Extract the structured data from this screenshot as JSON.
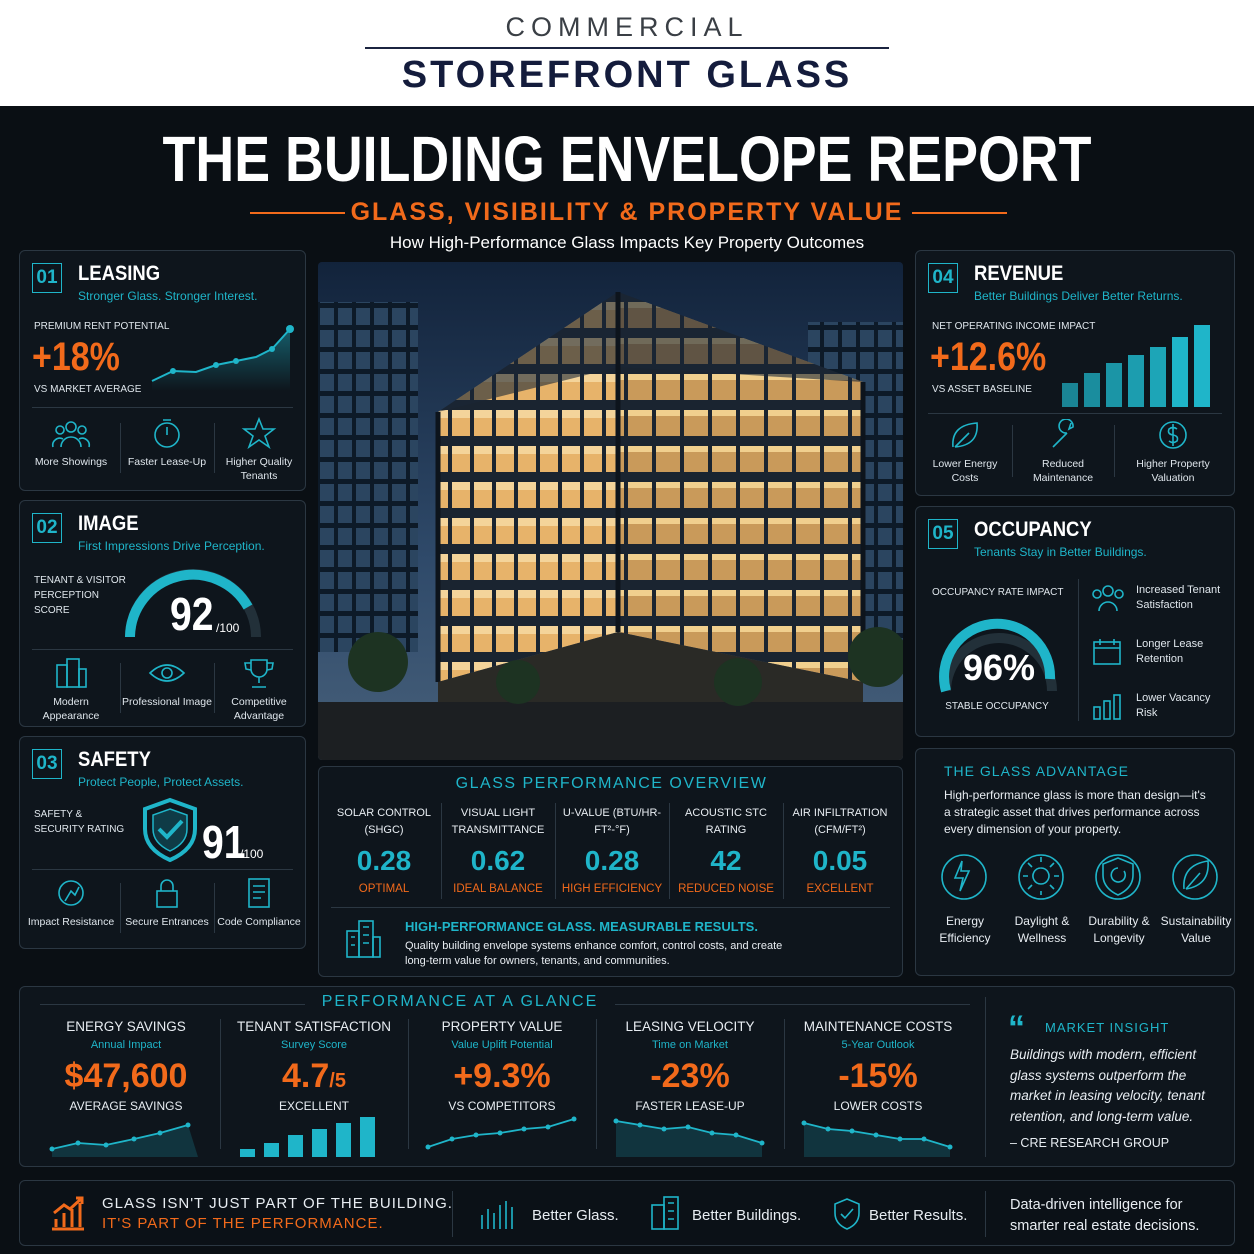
{
  "header": {
    "brand_top": "COMMERCIAL",
    "brand": "STOREFRONT GLASS"
  },
  "title": "THE BUILDING ENVELOPE REPORT",
  "subtitle": "GLASS, VISIBILITY & PROPERTY VALUE",
  "tagline": "How High-Performance Glass Impacts Key Property Outcomes",
  "cards": [
    {
      "num": "01",
      "title": "LEASING",
      "sub": "Stronger Glass. Stronger Interest.",
      "metric_label": "PREMIUM RENT POTENTIAL",
      "metric": "+18%",
      "metric_note": "VS MARKET AVERAGE",
      "features": [
        "More Showings",
        "Faster Lease-Up",
        "Higher Quality Tenants"
      ]
    },
    {
      "num": "02",
      "title": "IMAGE",
      "sub": "First Impressions Drive Perception.",
      "metric_label": "TENANT & VISITOR PERCEPTION SCORE",
      "metric": "92",
      "metric_max": "/100",
      "features": [
        "Modern Appearance",
        "Professional Image",
        "Competitive Advantage"
      ]
    },
    {
      "num": "03",
      "title": "SAFETY",
      "sub": "Protect People, Protect Assets.",
      "metric_label": "SAFETY & SECURITY RATING",
      "metric": "91",
      "metric_max": "/100",
      "features": [
        "Impact Resistance",
        "Secure Entrances",
        "Code Compliance"
      ]
    },
    {
      "num": "04",
      "title": "REVENUE",
      "sub": "Better Buildings Deliver Better Returns.",
      "metric_label": "NET OPERATING INCOME IMPACT",
      "metric": "+12.6%",
      "metric_note": "VS ASSET BASELINE",
      "features": [
        "Lower Energy Costs",
        "Reduced Maintenance",
        "Higher Property Valuation"
      ]
    },
    {
      "num": "05",
      "title": "OCCUPANCY",
      "sub": "Tenants Stay in Better Buildings.",
      "metric_label": "OCCUPANCY RATE IMPACT",
      "metric": "96%",
      "metric_note": "STABLE OCCUPANCY",
      "features": [
        "Increased Tenant Satisfaction",
        "Longer Lease Retention",
        "Lower Vacancy Risk"
      ]
    }
  ],
  "overview": {
    "title": "GLASS PERFORMANCE OVERVIEW",
    "columns": [
      {
        "label": "SOLAR CONTROL (SHGC)",
        "value": "0.28",
        "note": "OPTIMAL"
      },
      {
        "label": "VISUAL LIGHT TRANSMITTANCE",
        "value": "0.62",
        "note": "IDEAL BALANCE"
      },
      {
        "label": "U-VALUE (BTU/HR-FT²-°F)",
        "value": "0.28",
        "note": "HIGH EFFICIENCY"
      },
      {
        "label": "ACOUSTIC STC RATING",
        "value": "42",
        "note": "REDUCED NOISE"
      },
      {
        "label": "AIR INFILTRATION (CFM/FT²)",
        "value": "0.05",
        "note": "EXCELLENT"
      }
    ],
    "footer_title": "HIGH-PERFORMANCE GLASS. MEASURABLE RESULTS.",
    "footer_text": "Quality building envelope systems enhance comfort, control costs, and create long-term value for owners, tenants, and communities."
  },
  "advantage": {
    "title": "THE GLASS ADVANTAGE",
    "text": "High-performance glass is more than design—it's a strategic asset that drives performance across every dimension of your property.",
    "items": [
      "Energy Efficiency",
      "Daylight & Wellness",
      "Durability & Longevity",
      "Sustainability Value"
    ]
  },
  "glance": {
    "title": "PERFORMANCE AT A GLANCE",
    "items": [
      {
        "label": "ENERGY SAVINGS",
        "sub": "Annual Impact",
        "value": "$47,600",
        "note": "AVERAGE SAVINGS"
      },
      {
        "label": "TENANT SATISFACTION",
        "sub": "Survey Score",
        "value": "4.7",
        "unit": "/5",
        "note": "EXCELLENT"
      },
      {
        "label": "PROPERTY VALUE",
        "sub": "Value Uplift Potential",
        "value": "+9.3%",
        "note": "VS COMPETITORS"
      },
      {
        "label": "LEASING VELOCITY",
        "sub": "Time on Market",
        "value": "-23%",
        "note": "FASTER LEASE-UP"
      },
      {
        "label": "MAINTENANCE COSTS",
        "sub": "5-Year Outlook",
        "value": "-15%",
        "note": "LOWER COSTS"
      }
    ],
    "insight_title": "MARKET INSIGHT",
    "insight_text": "Buildings with modern, efficient glass systems outperform the market in leasing velocity, tenant retention, and long-term value.",
    "insight_source": "– CRE RESEARCH GROUP"
  },
  "footer": {
    "slogan": [
      "GLASS ISN'T JUST PART OF THE BUILDING.",
      "IT'S PART OF THE PERFORMANCE."
    ],
    "items": [
      "Better Glass.",
      "Better Buildings.",
      "Better Results."
    ],
    "closing": "Data-driven intelligence for smarter real estate decisions."
  }
}
